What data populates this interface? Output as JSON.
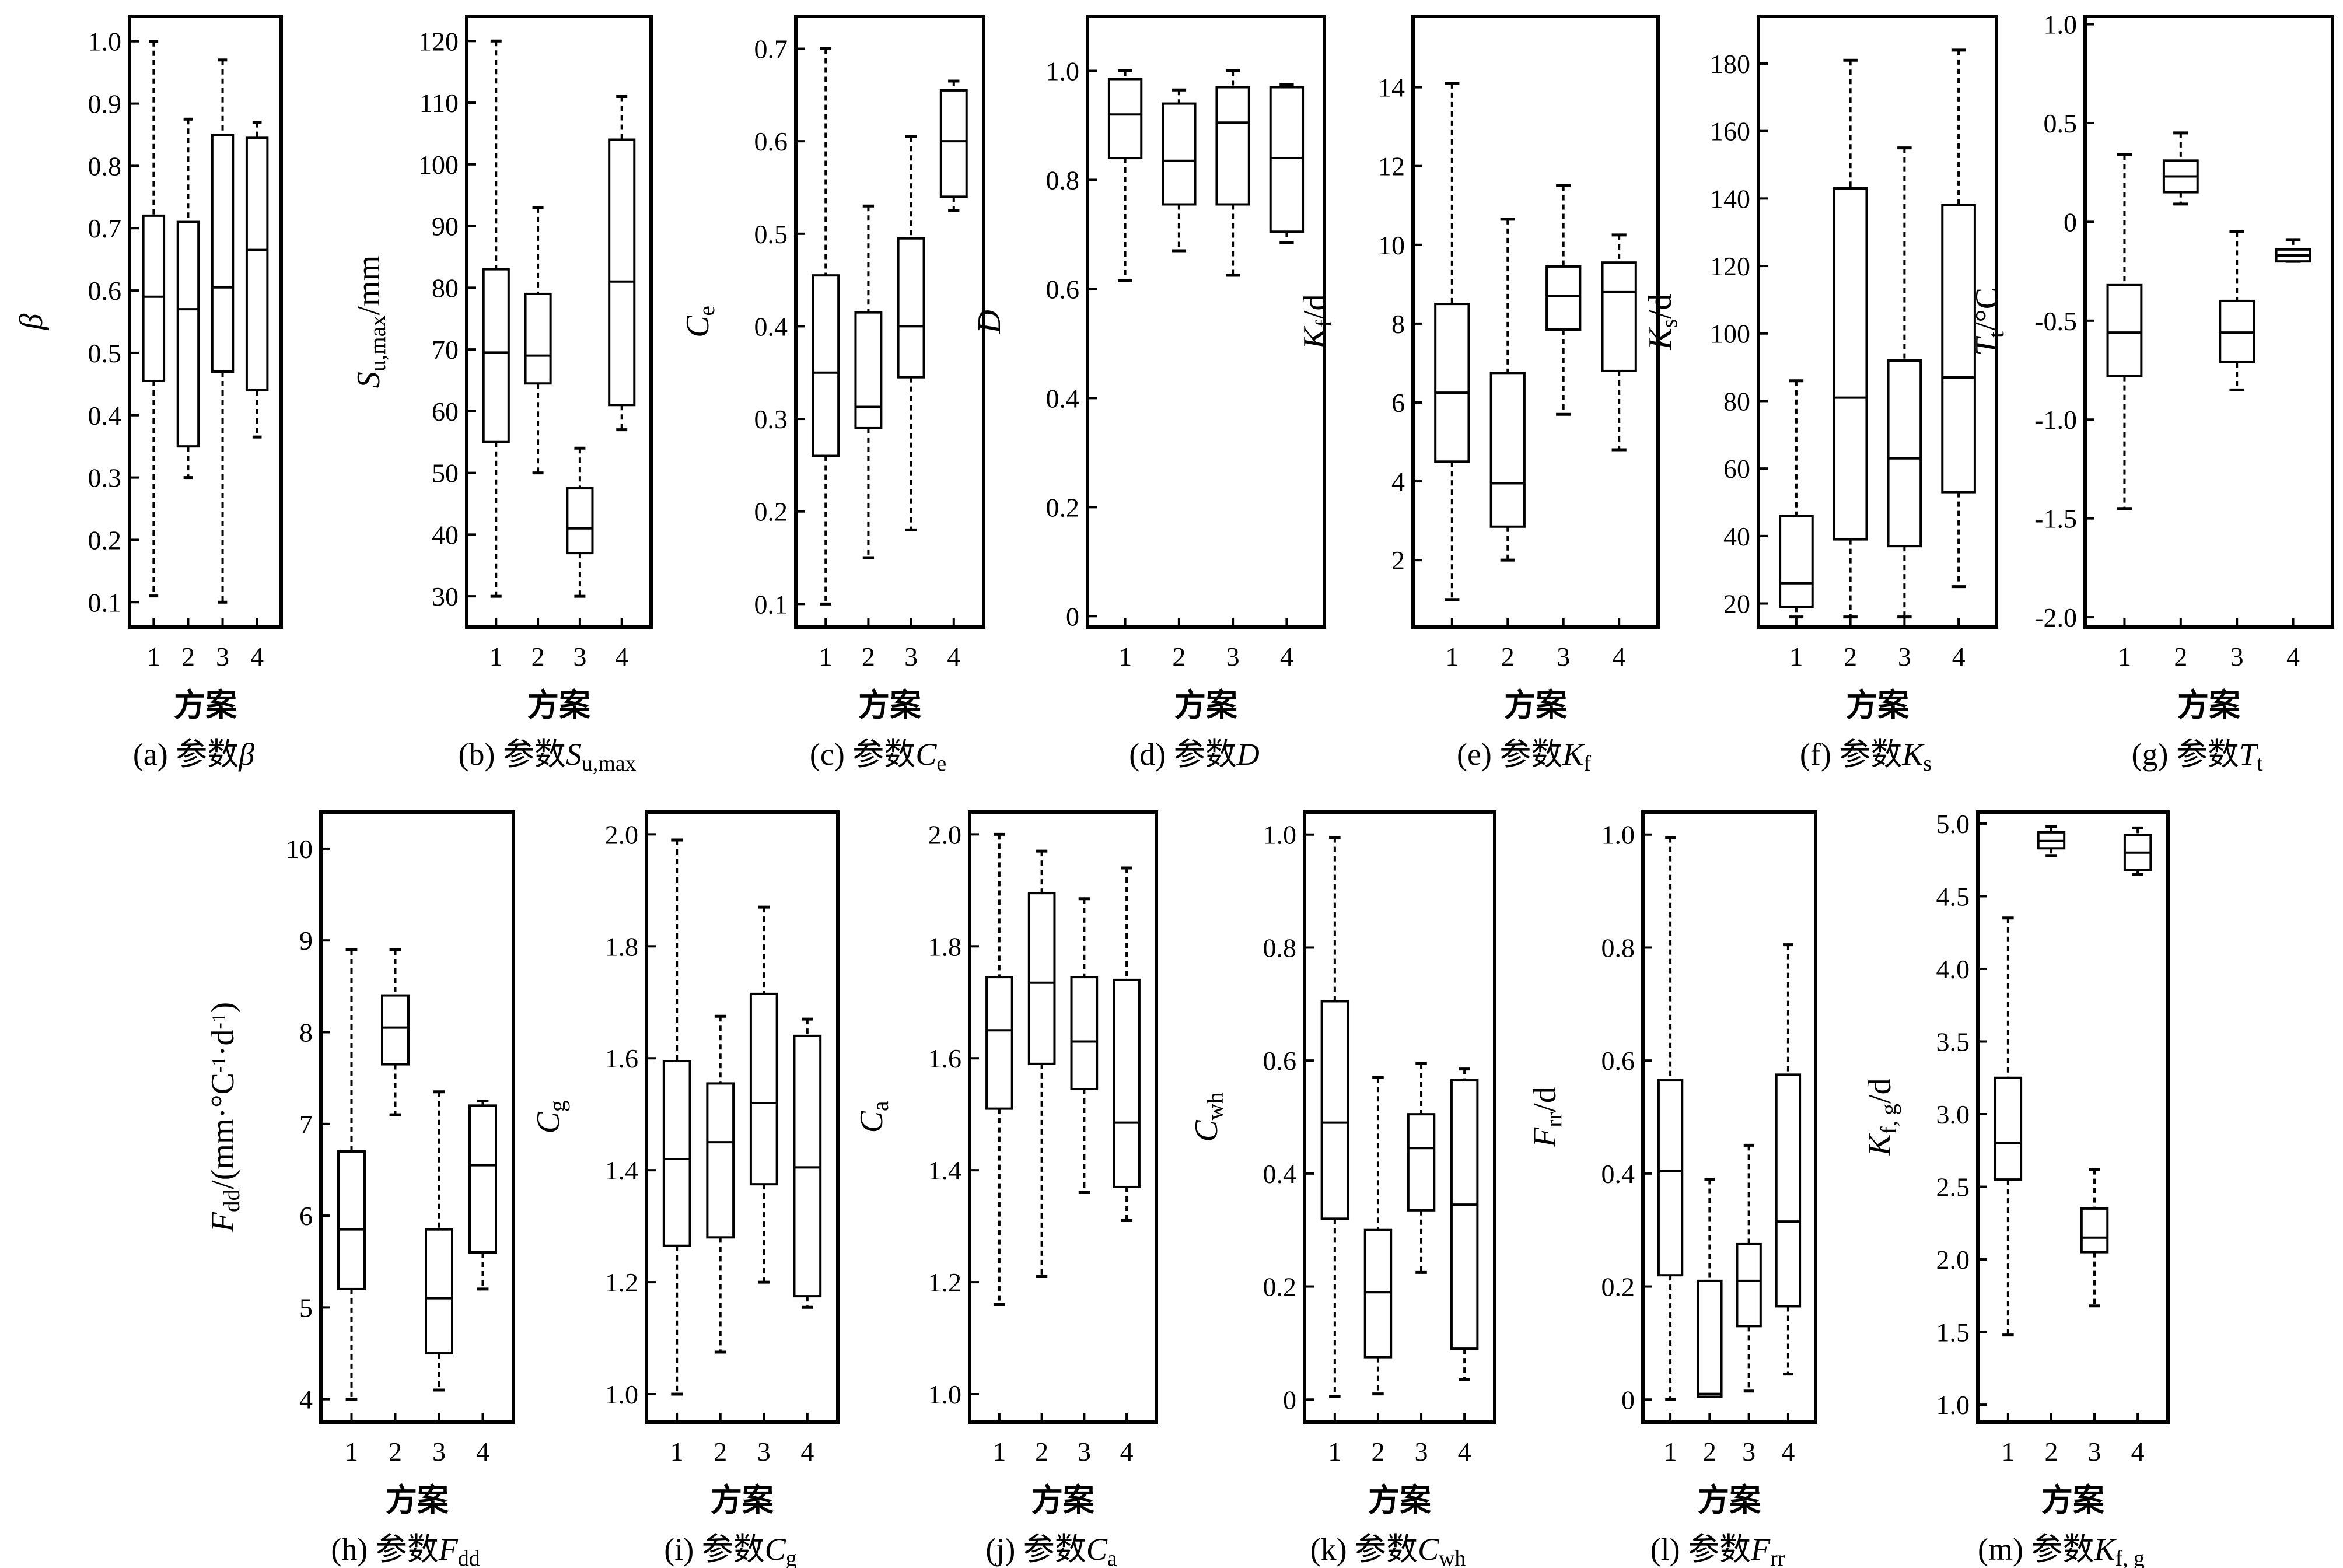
{
  "chart_data": [
    {
      "id": "a",
      "type": "boxplot",
      "caption": "(a) 参数β",
      "xlabel": "方案",
      "ylabel": "β",
      "categories": [
        "1",
        "2",
        "3",
        "4"
      ],
      "ylim": [
        0.06,
        1.04
      ],
      "yticks": [
        "0.1",
        "0.2",
        "0.3",
        "0.4",
        "0.5",
        "0.6",
        "0.7",
        "0.8",
        "0.9",
        "1.0"
      ],
      "boxes": [
        {
          "min": 0.11,
          "q1": 0.455,
          "median": 0.59,
          "q3": 0.72,
          "max": 1.0
        },
        {
          "min": 0.3,
          "q1": 0.35,
          "median": 0.57,
          "q3": 0.71,
          "max": 0.875
        },
        {
          "min": 0.1,
          "q1": 0.47,
          "median": 0.605,
          "q3": 0.85,
          "max": 0.97
        },
        {
          "min": 0.365,
          "q1": 0.44,
          "median": 0.665,
          "q3": 0.845,
          "max": 0.87
        }
      ]
    },
    {
      "id": "b",
      "type": "boxplot",
      "caption": "(b) 参数Su,max",
      "xlabel": "方案",
      "ylabel": "Su,max/mm",
      "categories": [
        "1",
        "2",
        "3",
        "4"
      ],
      "ylim": [
        25,
        124
      ],
      "yticks": [
        "30",
        "40",
        "50",
        "60",
        "70",
        "80",
        "90",
        "100",
        "110",
        "120"
      ],
      "boxes": [
        {
          "min": 30,
          "q1": 55,
          "median": 69.5,
          "q3": 83,
          "max": 120
        },
        {
          "min": 50,
          "q1": 64.5,
          "median": 69,
          "q3": 79,
          "max": 93
        },
        {
          "min": 30,
          "q1": 37,
          "median": 41,
          "q3": 47.5,
          "max": 54
        },
        {
          "min": 57,
          "q1": 61,
          "median": 81,
          "q3": 104,
          "max": 111
        }
      ]
    },
    {
      "id": "c",
      "type": "boxplot",
      "caption": "(c) 参数Ce",
      "xlabel": "方案",
      "ylabel": "Ce",
      "categories": [
        "1",
        "2",
        "3",
        "4"
      ],
      "ylim": [
        0.075,
        0.735
      ],
      "yticks": [
        "0.1",
        "0.2",
        "0.3",
        "0.4",
        "0.5",
        "0.6",
        "0.7"
      ],
      "boxes": [
        {
          "min": 0.1,
          "q1": 0.26,
          "median": 0.35,
          "q3": 0.455,
          "max": 0.7
        },
        {
          "min": 0.15,
          "q1": 0.29,
          "median": 0.313,
          "q3": 0.415,
          "max": 0.53
        },
        {
          "min": 0.18,
          "q1": 0.345,
          "median": 0.4,
          "q3": 0.495,
          "max": 0.605
        },
        {
          "min": 0.525,
          "q1": 0.54,
          "median": 0.6,
          "q3": 0.655,
          "max": 0.665
        }
      ]
    },
    {
      "id": "d",
      "type": "boxplot",
      "caption": "(d) 参数D",
      "xlabel": "方案",
      "ylabel": "D",
      "categories": [
        "1",
        "2",
        "3",
        "4"
      ],
      "ylim": [
        -0.02,
        1.1
      ],
      "yticks": [
        "0",
        "0.2",
        "0.4",
        "0.6",
        "0.8",
        "1.0"
      ],
      "boxes": [
        {
          "min": 0.615,
          "q1": 0.84,
          "median": 0.92,
          "q3": 0.985,
          "max": 1.0
        },
        {
          "min": 0.67,
          "q1": 0.755,
          "median": 0.835,
          "q3": 0.94,
          "max": 0.965
        },
        {
          "min": 0.625,
          "q1": 0.755,
          "median": 0.905,
          "q3": 0.97,
          "max": 1.0
        },
        {
          "min": 0.685,
          "q1": 0.705,
          "median": 0.84,
          "q3": 0.97,
          "max": 0.975
        }
      ]
    },
    {
      "id": "e",
      "type": "boxplot",
      "caption": "(e) 参数Kf",
      "xlabel": "方案",
      "ylabel": "Kf/d",
      "categories": [
        "1",
        "2",
        "3",
        "4"
      ],
      "ylim": [
        0.3,
        15.8
      ],
      "yticks": [
        "2",
        "4",
        "6",
        "8",
        "10",
        "12",
        "14"
      ],
      "boxes": [
        {
          "min": 1.0,
          "q1": 4.5,
          "median": 6.25,
          "q3": 8.5,
          "max": 14.1
        },
        {
          "min": 2.0,
          "q1": 2.85,
          "median": 3.95,
          "q3": 6.75,
          "max": 10.65
        },
        {
          "min": 5.7,
          "q1": 7.85,
          "median": 8.7,
          "q3": 9.45,
          "max": 11.5
        },
        {
          "min": 4.8,
          "q1": 6.8,
          "median": 8.8,
          "q3": 9.55,
          "max": 10.25
        }
      ]
    },
    {
      "id": "f",
      "type": "boxplot",
      "caption": "(f) 参数Ks",
      "xlabel": "方案",
      "ylabel": "Ks/d",
      "categories": [
        "1",
        "2",
        "3",
        "4"
      ],
      "ylim": [
        13,
        194
      ],
      "yticks": [
        "20",
        "40",
        "60",
        "80",
        "100",
        "120",
        "140",
        "160",
        "180"
      ],
      "boxes": [
        {
          "min": 16,
          "q1": 19,
          "median": 26,
          "q3": 46,
          "max": 86
        },
        {
          "min": 16,
          "q1": 39,
          "median": 81,
          "q3": 143,
          "max": 181
        },
        {
          "min": 16,
          "q1": 37,
          "median": 63,
          "q3": 92,
          "max": 155
        },
        {
          "min": 25,
          "q1": 53,
          "median": 87,
          "q3": 138,
          "max": 184
        }
      ]
    },
    {
      "id": "g",
      "type": "boxplot",
      "caption": "(g) 参数Tt",
      "xlabel": "方案",
      "ylabel": "Tt/°C",
      "categories": [
        "1",
        "2",
        "3",
        "4"
      ],
      "ylim": [
        -2.05,
        1.04
      ],
      "yticks": [
        "-2.0",
        "-1.5",
        "-1.0",
        "-0.5",
        "0",
        "0.5",
        "1.0"
      ],
      "boxes": [
        {
          "min": -1.45,
          "q1": -0.78,
          "median": -0.56,
          "q3": -0.32,
          "max": 0.34
        },
        {
          "min": 0.09,
          "q1": 0.15,
          "median": 0.23,
          "q3": 0.31,
          "max": 0.45
        },
        {
          "min": -0.85,
          "q1": -0.71,
          "median": -0.56,
          "q3": -0.4,
          "max": -0.05
        },
        {
          "min": -0.2,
          "q1": -0.2,
          "median": -0.17,
          "q3": -0.14,
          "max": -0.09
        }
      ]
    },
    {
      "id": "h",
      "type": "boxplot",
      "caption": "(h) 参数Fdd",
      "xlabel": "方案",
      "ylabel": "Fdd/(mm·°C-1·d-1)",
      "categories": [
        "1",
        "2",
        "3",
        "4"
      ],
      "ylim": [
        3.75,
        10.4
      ],
      "yticks": [
        "4",
        "5",
        "6",
        "7",
        "8",
        "9",
        "10"
      ],
      "boxes": [
        {
          "min": 4.0,
          "q1": 5.2,
          "median": 5.85,
          "q3": 6.7,
          "max": 8.9
        },
        {
          "min": 7.1,
          "q1": 7.65,
          "median": 8.05,
          "q3": 8.4,
          "max": 8.9
        },
        {
          "min": 4.1,
          "q1": 4.5,
          "median": 5.1,
          "q3": 5.85,
          "max": 7.35
        },
        {
          "min": 5.2,
          "q1": 5.6,
          "median": 6.55,
          "q3": 7.2,
          "max": 7.25
        }
      ]
    },
    {
      "id": "i",
      "type": "boxplot",
      "caption": "(i) 参数Cg",
      "xlabel": "方案",
      "ylabel": "Cg",
      "categories": [
        "1",
        "2",
        "3",
        "4"
      ],
      "ylim": [
        0.95,
        2.04
      ],
      "yticks": [
        "1.0",
        "1.2",
        "1.4",
        "1.6",
        "1.8",
        "2.0"
      ],
      "boxes": [
        {
          "min": 1.0,
          "q1": 1.265,
          "median": 1.42,
          "q3": 1.595,
          "max": 1.99
        },
        {
          "min": 1.075,
          "q1": 1.28,
          "median": 1.45,
          "q3": 1.555,
          "max": 1.675
        },
        {
          "min": 1.2,
          "q1": 1.375,
          "median": 1.52,
          "q3": 1.715,
          "max": 1.87
        },
        {
          "min": 1.155,
          "q1": 1.175,
          "median": 1.405,
          "q3": 1.64,
          "max": 1.67
        }
      ]
    },
    {
      "id": "j",
      "type": "boxplot",
      "caption": "(j) 参数Ca",
      "xlabel": "方案",
      "ylabel": "Ca",
      "categories": [
        "1",
        "2",
        "3",
        "4"
      ],
      "ylim": [
        0.95,
        2.04
      ],
      "yticks": [
        "1.0",
        "1.2",
        "1.4",
        "1.6",
        "1.8",
        "2.0"
      ],
      "boxes": [
        {
          "min": 1.16,
          "q1": 1.51,
          "median": 1.65,
          "q3": 1.745,
          "max": 2.0
        },
        {
          "min": 1.21,
          "q1": 1.59,
          "median": 1.735,
          "q3": 1.895,
          "max": 1.97
        },
        {
          "min": 1.36,
          "q1": 1.545,
          "median": 1.63,
          "q3": 1.745,
          "max": 1.885
        },
        {
          "min": 1.31,
          "q1": 1.37,
          "median": 1.485,
          "q3": 1.74,
          "max": 1.94
        }
      ]
    },
    {
      "id": "k",
      "type": "boxplot",
      "caption": "(k) 参数Cwh",
      "xlabel": "方案",
      "ylabel": "Cwh",
      "categories": [
        "1",
        "2",
        "3",
        "4"
      ],
      "ylim": [
        -0.04,
        1.04
      ],
      "yticks": [
        "0",
        "0.2",
        "0.4",
        "0.6",
        "0.8",
        "1.0"
      ],
      "boxes": [
        {
          "min": 0.005,
          "q1": 0.32,
          "median": 0.49,
          "q3": 0.705,
          "max": 0.995
        },
        {
          "min": 0.01,
          "q1": 0.075,
          "median": 0.19,
          "q3": 0.3,
          "max": 0.57
        },
        {
          "min": 0.225,
          "q1": 0.335,
          "median": 0.445,
          "q3": 0.505,
          "max": 0.595
        },
        {
          "min": 0.035,
          "q1": 0.09,
          "median": 0.345,
          "q3": 0.565,
          "max": 0.585
        }
      ]
    },
    {
      "id": "l",
      "type": "boxplot",
      "caption": "(l) 参数Frr",
      "xlabel": "方案",
      "ylabel": "Frr/d",
      "categories": [
        "1",
        "2",
        "3",
        "4"
      ],
      "ylim": [
        -0.04,
        1.04
      ],
      "yticks": [
        "0",
        "0.2",
        "0.4",
        "0.6",
        "0.8",
        "1.0"
      ],
      "boxes": [
        {
          "min": 0.0,
          "q1": 0.22,
          "median": 0.405,
          "q3": 0.565,
          "max": 0.995
        },
        {
          "min": 0.005,
          "q1": 0.005,
          "median": 0.01,
          "q3": 0.21,
          "max": 0.39
        },
        {
          "min": 0.015,
          "q1": 0.13,
          "median": 0.21,
          "q3": 0.275,
          "max": 0.45
        },
        {
          "min": 0.045,
          "q1": 0.165,
          "median": 0.315,
          "q3": 0.575,
          "max": 0.805
        }
      ]
    },
    {
      "id": "m",
      "type": "boxplot",
      "caption": "(m) 参数Kf, g",
      "xlabel": "方案",
      "ylabel": "Kf, g/d",
      "categories": [
        "1",
        "2",
        "3",
        "4"
      ],
      "ylim": [
        0.88,
        5.08
      ],
      "yticks": [
        "1.0",
        "1.5",
        "2.0",
        "2.5",
        "3.0",
        "3.5",
        "4.0",
        "4.5",
        "5.0"
      ],
      "boxes": [
        {
          "min": 1.48,
          "q1": 2.55,
          "median": 2.8,
          "q3": 3.25,
          "max": 4.35
        },
        {
          "min": 4.78,
          "q1": 4.83,
          "median": 4.88,
          "q3": 4.94,
          "max": 4.98
        },
        {
          "min": 1.68,
          "q1": 2.05,
          "median": 2.15,
          "q3": 2.35,
          "max": 2.62
        },
        {
          "min": 4.65,
          "q1": 4.68,
          "median": 4.8,
          "q3": 4.92,
          "max": 4.97
        }
      ]
    }
  ]
}
